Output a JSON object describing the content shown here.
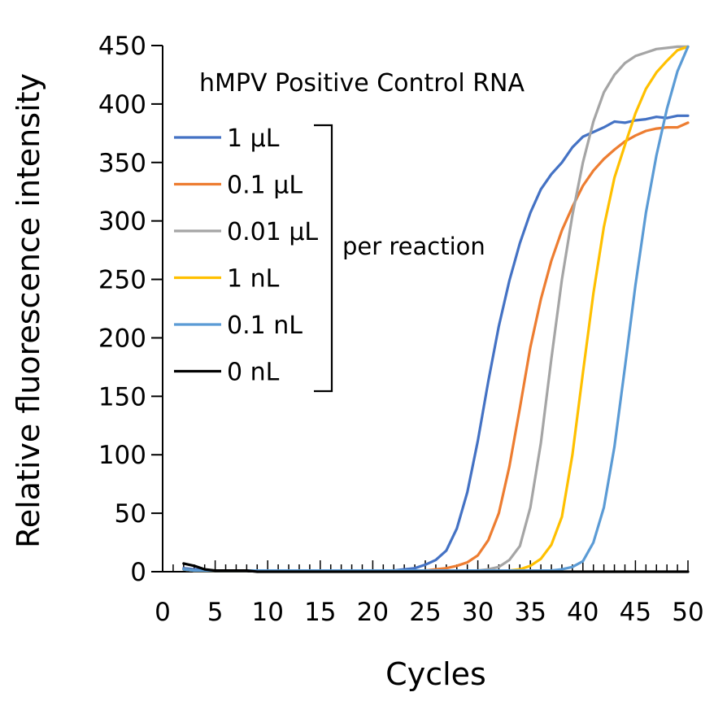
{
  "chart_data": {
    "type": "line",
    "title": "hMPV Positive Control RNA",
    "xlabel": "Cycles",
    "ylabel": "Relative fluorescence intensity",
    "xlim": [
      0,
      50
    ],
    "ylim": [
      0,
      450
    ],
    "xticks": [
      "0",
      "5",
      "10",
      "15",
      "20",
      "25",
      "30",
      "35",
      "40",
      "45",
      "50"
    ],
    "yticks": [
      "0",
      "50",
      "100",
      "150",
      "200",
      "250",
      "300",
      "350",
      "400",
      "450"
    ],
    "grid": false,
    "legend_placement": "top-left",
    "legend_group_label": "per reaction",
    "series": [
      {
        "name": "1 μL",
        "color": "#4472C4",
        "x": [
          2,
          3,
          4,
          5,
          6,
          7,
          8,
          9,
          10,
          11,
          12,
          13,
          14,
          15,
          16,
          17,
          18,
          19,
          20,
          21,
          22,
          23,
          24,
          25,
          26,
          27,
          28,
          29,
          30,
          31,
          32,
          33,
          34,
          35,
          36,
          37,
          38,
          39,
          40,
          41,
          42,
          43,
          44,
          45,
          46,
          47,
          48,
          49,
          50
        ],
        "y": [
          3,
          2,
          1,
          1,
          1,
          1,
          1,
          1,
          1,
          1,
          1,
          1,
          1,
          1,
          1,
          1,
          1,
          1,
          1,
          1,
          1,
          2,
          3,
          6,
          10,
          18,
          37,
          68,
          112,
          163,
          210,
          249,
          281,
          307,
          327,
          340,
          350,
          363,
          372,
          376,
          380,
          385,
          384,
          386,
          387,
          389,
          388,
          390,
          390
        ]
      },
      {
        "name": "0.1 μL",
        "color": "#ED7D31",
        "x": [
          2,
          3,
          4,
          5,
          6,
          7,
          8,
          9,
          10,
          11,
          12,
          13,
          14,
          15,
          16,
          17,
          18,
          19,
          20,
          21,
          22,
          23,
          24,
          25,
          26,
          27,
          28,
          29,
          30,
          31,
          32,
          33,
          34,
          35,
          36,
          37,
          38,
          39,
          40,
          41,
          42,
          43,
          44,
          45,
          46,
          47,
          48,
          49,
          50
        ],
        "y": [
          2,
          1,
          1,
          1,
          1,
          1,
          1,
          1,
          1,
          1,
          1,
          1,
          1,
          1,
          1,
          1,
          1,
          1,
          1,
          1,
          1,
          1,
          1,
          1,
          2,
          3,
          5,
          8,
          14,
          27,
          50,
          90,
          140,
          192,
          233,
          266,
          292,
          312,
          330,
          343,
          353,
          361,
          368,
          373,
          377,
          379,
          380,
          380,
          384
        ]
      },
      {
        "name": "0.01 μL",
        "color": "#A5A5A5",
        "x": [
          2,
          3,
          4,
          5,
          6,
          7,
          8,
          9,
          10,
          11,
          12,
          13,
          14,
          15,
          16,
          17,
          18,
          19,
          20,
          21,
          22,
          23,
          24,
          25,
          26,
          27,
          28,
          29,
          30,
          31,
          32,
          33,
          34,
          35,
          36,
          37,
          38,
          39,
          40,
          41,
          42,
          43,
          44,
          45,
          46,
          47,
          48,
          49,
          50
        ],
        "y": [
          2,
          1,
          1,
          1,
          1,
          1,
          1,
          1,
          1,
          1,
          1,
          1,
          1,
          1,
          1,
          1,
          1,
          1,
          1,
          1,
          1,
          1,
          1,
          1,
          1,
          1,
          1,
          1,
          1,
          2,
          4,
          10,
          22,
          55,
          110,
          182,
          250,
          305,
          350,
          385,
          410,
          425,
          435,
          441,
          444,
          447,
          448,
          449,
          449
        ]
      },
      {
        "name": "1 nL",
        "color": "#FFC000",
        "x": [
          2,
          3,
          4,
          5,
          6,
          7,
          8,
          9,
          10,
          11,
          12,
          13,
          14,
          15,
          16,
          17,
          18,
          19,
          20,
          21,
          22,
          23,
          24,
          25,
          26,
          27,
          28,
          29,
          30,
          31,
          32,
          33,
          34,
          35,
          36,
          37,
          38,
          39,
          40,
          41,
          42,
          43,
          44,
          45,
          46,
          47,
          48,
          49,
          50
        ],
        "y": [
          2,
          1,
          1,
          1,
          1,
          1,
          1,
          1,
          1,
          1,
          1,
          1,
          1,
          1,
          1,
          1,
          1,
          1,
          1,
          1,
          1,
          1,
          1,
          1,
          1,
          1,
          1,
          1,
          1,
          1,
          1,
          1,
          2,
          5,
          11,
          23,
          47,
          100,
          170,
          238,
          295,
          337,
          365,
          392,
          413,
          427,
          437,
          446,
          449
        ]
      },
      {
        "name": "0.1 nL",
        "color": "#5B9BD5",
        "x": [
          2,
          3,
          4,
          5,
          6,
          7,
          8,
          9,
          10,
          11,
          12,
          13,
          14,
          15,
          16,
          17,
          18,
          19,
          20,
          21,
          22,
          23,
          24,
          25,
          26,
          27,
          28,
          29,
          30,
          31,
          32,
          33,
          34,
          35,
          36,
          37,
          38,
          39,
          40,
          41,
          42,
          43,
          44,
          45,
          46,
          47,
          48,
          49,
          50
        ],
        "y": [
          2,
          1,
          1,
          1,
          1,
          1,
          1,
          1,
          1,
          1,
          1,
          1,
          1,
          1,
          1,
          1,
          1,
          1,
          1,
          1,
          1,
          1,
          1,
          1,
          1,
          1,
          1,
          1,
          1,
          1,
          1,
          1,
          1,
          1,
          1,
          1,
          2,
          4,
          9,
          25,
          55,
          107,
          175,
          245,
          307,
          356,
          396,
          428,
          449
        ]
      },
      {
        "name": "0 nL",
        "color": "#000000",
        "x": [
          2,
          3,
          4,
          5,
          6,
          7,
          8,
          9,
          10,
          11,
          12,
          13,
          14,
          15,
          16,
          17,
          18,
          19,
          20,
          21,
          22,
          23,
          24,
          25,
          26,
          27,
          28,
          29,
          30,
          31,
          32,
          33,
          34,
          35,
          36,
          37,
          38,
          39,
          40,
          41,
          42,
          43,
          44,
          45,
          46,
          47,
          48,
          49,
          50
        ],
        "y": [
          7,
          5,
          2,
          1,
          1,
          1,
          1,
          0,
          0,
          0,
          0,
          0,
          0,
          0,
          0,
          0,
          0,
          0,
          0,
          0,
          0,
          0,
          0,
          0,
          0,
          0,
          0,
          0,
          0,
          0,
          0,
          0,
          0,
          0,
          0,
          0,
          0,
          0,
          0,
          0,
          0,
          0,
          0,
          0,
          0,
          0,
          0,
          0,
          0
        ]
      }
    ]
  }
}
